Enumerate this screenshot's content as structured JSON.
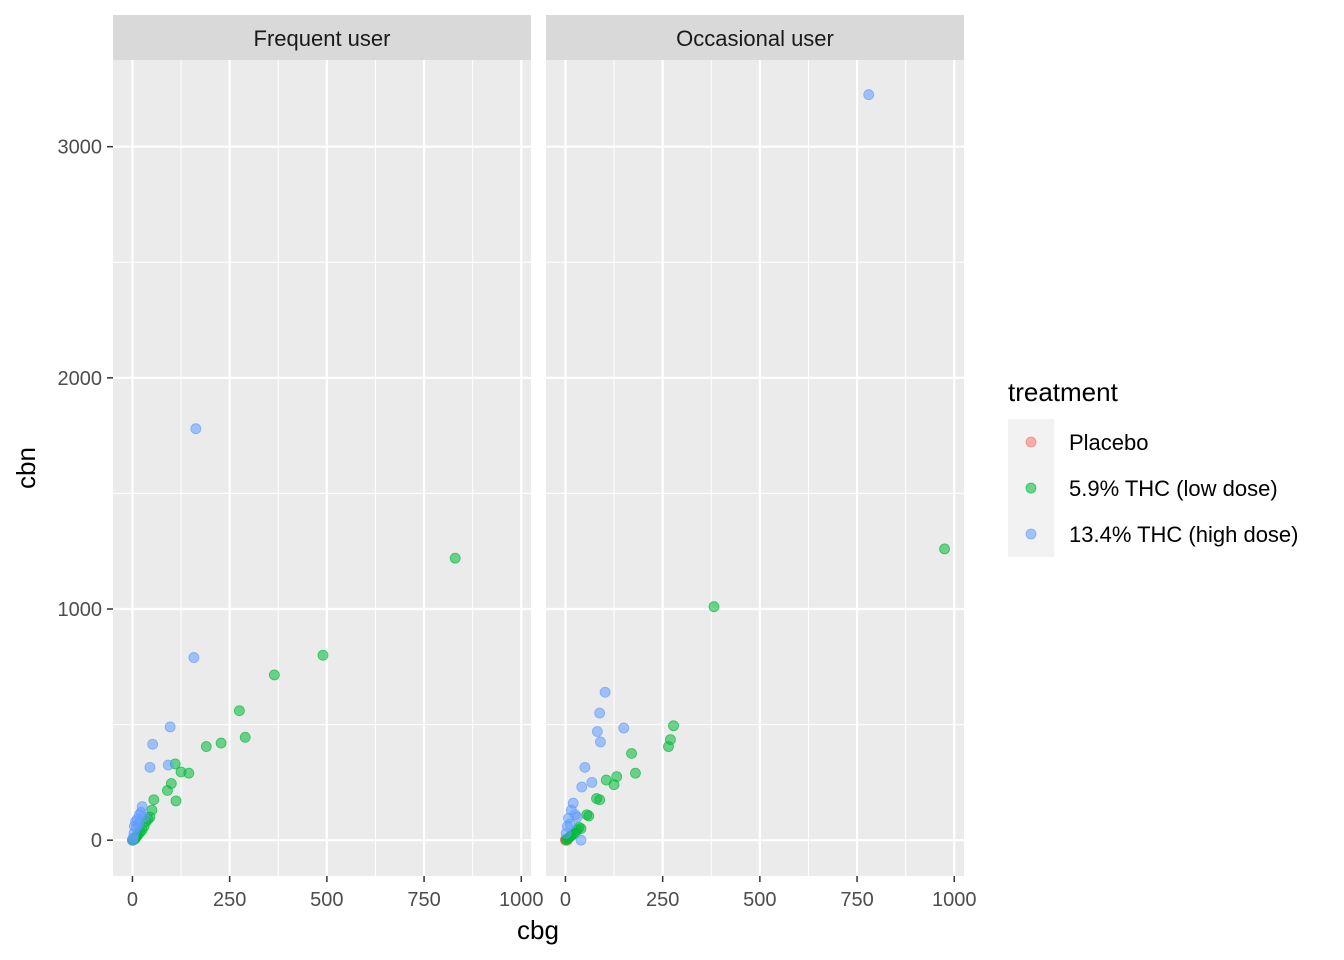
{
  "chart_data": {
    "type": "scatter",
    "title": "",
    "xlabel": "cbg",
    "ylabel": "cbn",
    "xlim": [
      -50,
      1025
    ],
    "ylim": [
      -155,
      3375
    ],
    "x_ticks": [
      0,
      250,
      500,
      750,
      1000
    ],
    "y_ticks": [
      0,
      1000,
      2000,
      3000
    ],
    "grid": true,
    "legend_position": "right",
    "legend": {
      "title": "treatment",
      "entries": [
        {
          "name": "Placebo",
          "color": "#F8766D"
        },
        {
          "name": "5.9% THC (low dose)",
          "color": "#00BA38"
        },
        {
          "name": "13.4% THC (high dose)",
          "color": "#619CFF"
        }
      ]
    },
    "panels": [
      {
        "label": "Frequent user",
        "series": [
          {
            "name": "Placebo",
            "points": [
              [
                0,
                0
              ],
              [
                1,
                0
              ],
              [
                2,
                1
              ],
              [
                0,
                2
              ]
            ]
          },
          {
            "name": "5.9% THC (low dose)",
            "points": [
              [
                0,
                0
              ],
              [
                2,
                1
              ],
              [
                4,
                3
              ],
              [
                6,
                5
              ],
              [
                8,
                10
              ],
              [
                10,
                15
              ],
              [
                12,
                20
              ],
              [
                15,
                25
              ],
              [
                20,
                35
              ],
              [
                25,
                45
              ],
              [
                30,
                60
              ],
              [
                35,
                80
              ],
              [
                40,
                90
              ],
              [
                45,
                100
              ],
              [
                50,
                130
              ],
              [
                55,
                175
              ],
              [
                90,
                215
              ],
              [
                100,
                245
              ],
              [
                110,
                330
              ],
              [
                112,
                170
              ],
              [
                125,
                295
              ],
              [
                145,
                290
              ],
              [
                190,
                405
              ],
              [
                228,
                420
              ],
              [
                275,
                560
              ],
              [
                290,
                445
              ],
              [
                365,
                715
              ],
              [
                490,
                800
              ],
              [
                830,
                1220
              ]
            ]
          },
          {
            "name": "13.4% THC (high dose)",
            "points": [
              [
                0,
                0
              ],
              [
                2,
                10
              ],
              [
                4,
                30
              ],
              [
                5,
                60
              ],
              [
                8,
                80
              ],
              [
                10,
                55
              ],
              [
                12,
                90
              ],
              [
                15,
                70
              ],
              [
                18,
                110
              ],
              [
                22,
                120
              ],
              [
                25,
                145
              ],
              [
                30,
                100
              ],
              [
                45,
                315
              ],
              [
                52,
                415
              ],
              [
                92,
                325
              ],
              [
                97,
                490
              ],
              [
                158,
                790
              ],
              [
                163,
                1780
              ]
            ]
          }
        ]
      },
      {
        "label": "Occasional user",
        "series": [
          {
            "name": "Placebo",
            "points": [
              [
                0,
                0
              ],
              [
                1,
                0
              ],
              [
                2,
                0
              ],
              [
                3,
                1
              ],
              [
                0,
                2
              ],
              [
                5,
                0
              ]
            ]
          },
          {
            "name": "5.9% THC (low dose)",
            "points": [
              [
                2,
                2
              ],
              [
                5,
                5
              ],
              [
                8,
                10
              ],
              [
                12,
                15
              ],
              [
                15,
                20
              ],
              [
                20,
                25
              ],
              [
                25,
                30
              ],
              [
                30,
                45
              ],
              [
                35,
                55
              ],
              [
                40,
                50
              ],
              [
                55,
                110
              ],
              [
                60,
                105
              ],
              [
                80,
                180
              ],
              [
                88,
                175
              ],
              [
                105,
                260
              ],
              [
                125,
                240
              ],
              [
                132,
                275
              ],
              [
                170,
                375
              ],
              [
                180,
                290
              ],
              [
                265,
                405
              ],
              [
                270,
                435
              ],
              [
                278,
                495
              ],
              [
                382,
                1010
              ],
              [
                975,
                1260
              ]
            ]
          },
          {
            "name": "13.4% THC (high dose)",
            "points": [
              [
                2,
                30
              ],
              [
                5,
                60
              ],
              [
                8,
                95
              ],
              [
                12,
                70
              ],
              [
                15,
                130
              ],
              [
                20,
                160
              ],
              [
                25,
                110
              ],
              [
                30,
                100
              ],
              [
                40,
                0
              ],
              [
                42,
                230
              ],
              [
                50,
                315
              ],
              [
                68,
                250
              ],
              [
                82,
                470
              ],
              [
                88,
                550
              ],
              [
                90,
                425
              ],
              [
                102,
                640
              ],
              [
                150,
                485
              ],
              [
                780,
                3225
              ]
            ]
          }
        ]
      }
    ]
  }
}
